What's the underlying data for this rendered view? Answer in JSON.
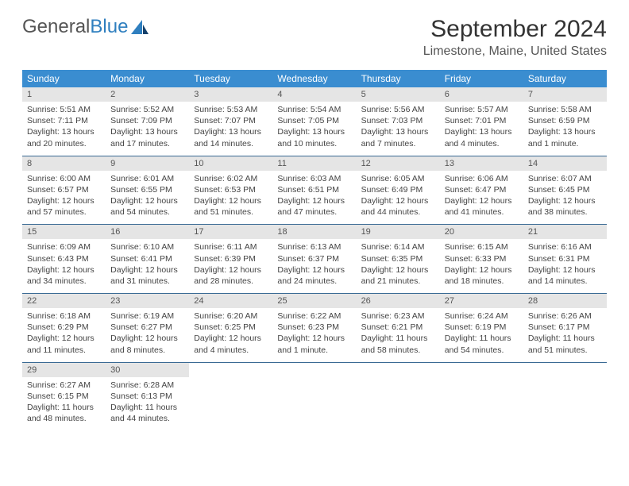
{
  "logo": {
    "part1": "General",
    "part2": "Blue"
  },
  "title": "September 2024",
  "location": "Limestone, Maine, United States",
  "colors": {
    "header_bg": "#3a8dd0",
    "header_text": "#ffffff",
    "daynum_bg": "#e5e5e5",
    "separator": "#3a6a94",
    "text": "#444444",
    "logo_blue": "#2f7fbf"
  },
  "daynames": [
    "Sunday",
    "Monday",
    "Tuesday",
    "Wednesday",
    "Thursday",
    "Friday",
    "Saturday"
  ],
  "weeks": [
    [
      {
        "n": "1",
        "sr": "Sunrise: 5:51 AM",
        "ss": "Sunset: 7:11 PM",
        "d1": "Daylight: 13 hours",
        "d2": "and 20 minutes."
      },
      {
        "n": "2",
        "sr": "Sunrise: 5:52 AM",
        "ss": "Sunset: 7:09 PM",
        "d1": "Daylight: 13 hours",
        "d2": "and 17 minutes."
      },
      {
        "n": "3",
        "sr": "Sunrise: 5:53 AM",
        "ss": "Sunset: 7:07 PM",
        "d1": "Daylight: 13 hours",
        "d2": "and 14 minutes."
      },
      {
        "n": "4",
        "sr": "Sunrise: 5:54 AM",
        "ss": "Sunset: 7:05 PM",
        "d1": "Daylight: 13 hours",
        "d2": "and 10 minutes."
      },
      {
        "n": "5",
        "sr": "Sunrise: 5:56 AM",
        "ss": "Sunset: 7:03 PM",
        "d1": "Daylight: 13 hours",
        "d2": "and 7 minutes."
      },
      {
        "n": "6",
        "sr": "Sunrise: 5:57 AM",
        "ss": "Sunset: 7:01 PM",
        "d1": "Daylight: 13 hours",
        "d2": "and 4 minutes."
      },
      {
        "n": "7",
        "sr": "Sunrise: 5:58 AM",
        "ss": "Sunset: 6:59 PM",
        "d1": "Daylight: 13 hours",
        "d2": "and 1 minute."
      }
    ],
    [
      {
        "n": "8",
        "sr": "Sunrise: 6:00 AM",
        "ss": "Sunset: 6:57 PM",
        "d1": "Daylight: 12 hours",
        "d2": "and 57 minutes."
      },
      {
        "n": "9",
        "sr": "Sunrise: 6:01 AM",
        "ss": "Sunset: 6:55 PM",
        "d1": "Daylight: 12 hours",
        "d2": "and 54 minutes."
      },
      {
        "n": "10",
        "sr": "Sunrise: 6:02 AM",
        "ss": "Sunset: 6:53 PM",
        "d1": "Daylight: 12 hours",
        "d2": "and 51 minutes."
      },
      {
        "n": "11",
        "sr": "Sunrise: 6:03 AM",
        "ss": "Sunset: 6:51 PM",
        "d1": "Daylight: 12 hours",
        "d2": "and 47 minutes."
      },
      {
        "n": "12",
        "sr": "Sunrise: 6:05 AM",
        "ss": "Sunset: 6:49 PM",
        "d1": "Daylight: 12 hours",
        "d2": "and 44 minutes."
      },
      {
        "n": "13",
        "sr": "Sunrise: 6:06 AM",
        "ss": "Sunset: 6:47 PM",
        "d1": "Daylight: 12 hours",
        "d2": "and 41 minutes."
      },
      {
        "n": "14",
        "sr": "Sunrise: 6:07 AM",
        "ss": "Sunset: 6:45 PM",
        "d1": "Daylight: 12 hours",
        "d2": "and 38 minutes."
      }
    ],
    [
      {
        "n": "15",
        "sr": "Sunrise: 6:09 AM",
        "ss": "Sunset: 6:43 PM",
        "d1": "Daylight: 12 hours",
        "d2": "and 34 minutes."
      },
      {
        "n": "16",
        "sr": "Sunrise: 6:10 AM",
        "ss": "Sunset: 6:41 PM",
        "d1": "Daylight: 12 hours",
        "d2": "and 31 minutes."
      },
      {
        "n": "17",
        "sr": "Sunrise: 6:11 AM",
        "ss": "Sunset: 6:39 PM",
        "d1": "Daylight: 12 hours",
        "d2": "and 28 minutes."
      },
      {
        "n": "18",
        "sr": "Sunrise: 6:13 AM",
        "ss": "Sunset: 6:37 PM",
        "d1": "Daylight: 12 hours",
        "d2": "and 24 minutes."
      },
      {
        "n": "19",
        "sr": "Sunrise: 6:14 AM",
        "ss": "Sunset: 6:35 PM",
        "d1": "Daylight: 12 hours",
        "d2": "and 21 minutes."
      },
      {
        "n": "20",
        "sr": "Sunrise: 6:15 AM",
        "ss": "Sunset: 6:33 PM",
        "d1": "Daylight: 12 hours",
        "d2": "and 18 minutes."
      },
      {
        "n": "21",
        "sr": "Sunrise: 6:16 AM",
        "ss": "Sunset: 6:31 PM",
        "d1": "Daylight: 12 hours",
        "d2": "and 14 minutes."
      }
    ],
    [
      {
        "n": "22",
        "sr": "Sunrise: 6:18 AM",
        "ss": "Sunset: 6:29 PM",
        "d1": "Daylight: 12 hours",
        "d2": "and 11 minutes."
      },
      {
        "n": "23",
        "sr": "Sunrise: 6:19 AM",
        "ss": "Sunset: 6:27 PM",
        "d1": "Daylight: 12 hours",
        "d2": "and 8 minutes."
      },
      {
        "n": "24",
        "sr": "Sunrise: 6:20 AM",
        "ss": "Sunset: 6:25 PM",
        "d1": "Daylight: 12 hours",
        "d2": "and 4 minutes."
      },
      {
        "n": "25",
        "sr": "Sunrise: 6:22 AM",
        "ss": "Sunset: 6:23 PM",
        "d1": "Daylight: 12 hours",
        "d2": "and 1 minute."
      },
      {
        "n": "26",
        "sr": "Sunrise: 6:23 AM",
        "ss": "Sunset: 6:21 PM",
        "d1": "Daylight: 11 hours",
        "d2": "and 58 minutes."
      },
      {
        "n": "27",
        "sr": "Sunrise: 6:24 AM",
        "ss": "Sunset: 6:19 PM",
        "d1": "Daylight: 11 hours",
        "d2": "and 54 minutes."
      },
      {
        "n": "28",
        "sr": "Sunrise: 6:26 AM",
        "ss": "Sunset: 6:17 PM",
        "d1": "Daylight: 11 hours",
        "d2": "and 51 minutes."
      }
    ],
    [
      {
        "n": "29",
        "sr": "Sunrise: 6:27 AM",
        "ss": "Sunset: 6:15 PM",
        "d1": "Daylight: 11 hours",
        "d2": "and 48 minutes."
      },
      {
        "n": "30",
        "sr": "Sunrise: 6:28 AM",
        "ss": "Sunset: 6:13 PM",
        "d1": "Daylight: 11 hours",
        "d2": "and 44 minutes."
      },
      null,
      null,
      null,
      null,
      null
    ]
  ]
}
